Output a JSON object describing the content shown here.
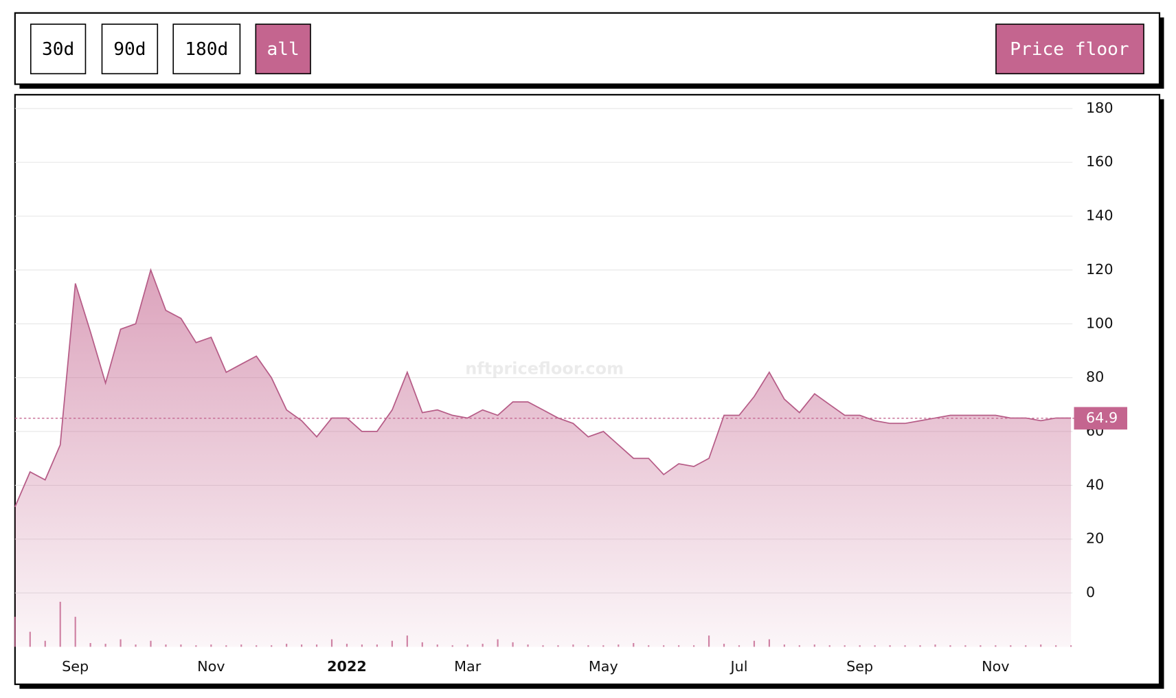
{
  "buttons": [
    {
      "label": "30d",
      "active": false
    },
    {
      "label": "90d",
      "active": false
    },
    {
      "label": "180d",
      "active": false
    },
    {
      "label": "all",
      "active": true
    }
  ],
  "toggle": {
    "label": "Price floor",
    "active": true
  },
  "watermark": "nftpricefloor.com",
  "chart_data": {
    "type": "area",
    "color": "#c4658f",
    "categories": [
      null,
      null,
      null,
      null,
      "Sep",
      null,
      null,
      null,
      null,
      null,
      null,
      null,
      null,
      "Nov",
      null,
      null,
      null,
      null,
      null,
      null,
      null,
      null,
      "2022",
      null,
      null,
      null,
      null,
      null,
      null,
      null,
      "Mar",
      null,
      null,
      null,
      null,
      null,
      null,
      null,
      null,
      "May",
      null,
      null,
      null,
      null,
      null,
      null,
      null,
      null,
      "Jul",
      null,
      null,
      null,
      null,
      null,
      null,
      null,
      "Sep",
      null,
      null,
      null,
      null,
      null,
      null,
      null,
      null,
      "Nov",
      null,
      null,
      null,
      null,
      null
    ],
    "values": [
      32,
      45,
      42,
      55,
      115,
      97,
      78,
      98,
      100,
      120,
      105,
      102,
      93,
      95,
      82,
      85,
      88,
      80,
      68,
      64,
      58,
      65,
      65,
      60,
      60,
      68,
      82,
      67,
      68,
      66,
      65,
      68,
      66,
      71,
      71,
      68,
      65,
      63,
      58,
      60,
      55,
      50,
      50,
      44,
      48,
      47,
      50,
      66,
      66,
      73,
      82,
      72,
      67,
      74,
      70,
      66,
      66,
      64,
      63,
      63,
      64,
      65,
      66,
      66,
      66,
      66,
      65,
      65,
      64,
      65,
      65
    ],
    "volume": [
      40,
      20,
      8,
      60,
      40,
      5,
      4,
      10,
      3,
      8,
      3,
      3,
      2,
      3,
      2,
      3,
      2,
      2,
      4,
      3,
      3,
      10,
      4,
      3,
      3,
      8,
      15,
      6,
      3,
      2,
      3,
      4,
      10,
      6,
      3,
      2,
      2,
      3,
      2,
      2,
      3,
      5,
      2,
      2,
      2,
      2,
      15,
      4,
      2,
      8,
      10,
      3,
      2,
      3,
      2,
      2,
      2,
      2,
      2,
      2,
      2,
      3,
      2,
      2,
      2,
      2,
      2,
      2,
      3,
      2,
      2
    ],
    "y2lim": [
      0,
      150
    ],
    "ylim": [
      -20,
      184
    ],
    "yticks": [
      0,
      20,
      40,
      60,
      80,
      100,
      120,
      140,
      160,
      180
    ],
    "grid": true,
    "last_value": 64.9
  }
}
